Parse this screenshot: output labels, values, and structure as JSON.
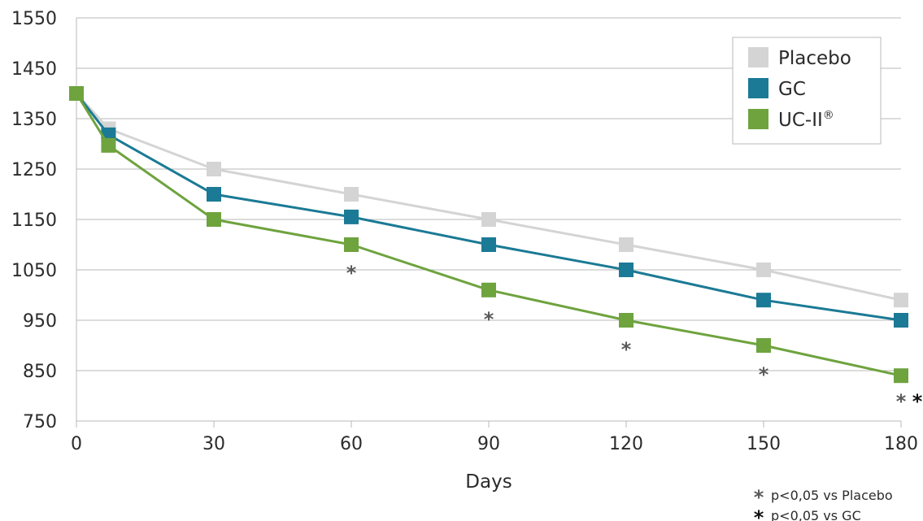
{
  "chart_data": {
    "type": "line",
    "xlabel": "Days",
    "ylabel": "",
    "xlim": [
      0,
      180
    ],
    "ylim": [
      750,
      1550
    ],
    "x_ticks": [
      0,
      30,
      60,
      90,
      120,
      150,
      180
    ],
    "y_ticks": [
      750,
      850,
      950,
      1050,
      1150,
      1250,
      1350,
      1450,
      1550
    ],
    "grid": "horizontal",
    "legend_position": "top-right",
    "series": [
      {
        "name": "Placebo",
        "color": "#d4d4d4",
        "x": [
          0,
          7,
          30,
          60,
          90,
          120,
          150,
          180
        ],
        "y": [
          1400,
          1330,
          1250,
          1200,
          1150,
          1100,
          1050,
          990
        ]
      },
      {
        "name": "GC",
        "color": "#1b7a95",
        "x": [
          0,
          7,
          30,
          60,
          90,
          120,
          150,
          180
        ],
        "y": [
          1400,
          1318,
          1200,
          1155,
          1100,
          1050,
          990,
          950
        ]
      },
      {
        "name": "UC-II",
        "legend_superscript": "®",
        "color": "#6ea33e",
        "x": [
          0,
          7,
          30,
          60,
          90,
          120,
          150,
          180
        ],
        "y": [
          1400,
          1297,
          1150,
          1100,
          1010,
          950,
          900,
          840
        ]
      }
    ],
    "significance_markers": [
      {
        "x": 60,
        "y": 1050,
        "symbols": [
          "*"
        ],
        "types": [
          "vs_placebo"
        ]
      },
      {
        "x": 90,
        "y": 958,
        "symbols": [
          "*"
        ],
        "types": [
          "vs_placebo"
        ]
      },
      {
        "x": 120,
        "y": 898,
        "symbols": [
          "*"
        ],
        "types": [
          "vs_placebo"
        ]
      },
      {
        "x": 150,
        "y": 848,
        "symbols": [
          "*"
        ],
        "types": [
          "vs_placebo"
        ]
      },
      {
        "x": 180,
        "y": 795,
        "symbols": [
          "*",
          "*"
        ],
        "types": [
          "vs_placebo",
          "vs_gc"
        ]
      }
    ],
    "footnotes": [
      {
        "symbol": "*",
        "type": "vs_placebo",
        "color": "#5a5a5a",
        "text": "p<0,05 vs Placebo"
      },
      {
        "symbol": "*",
        "type": "vs_gc",
        "color": "#111111",
        "text": "p<0,05 vs GC"
      }
    ]
  }
}
